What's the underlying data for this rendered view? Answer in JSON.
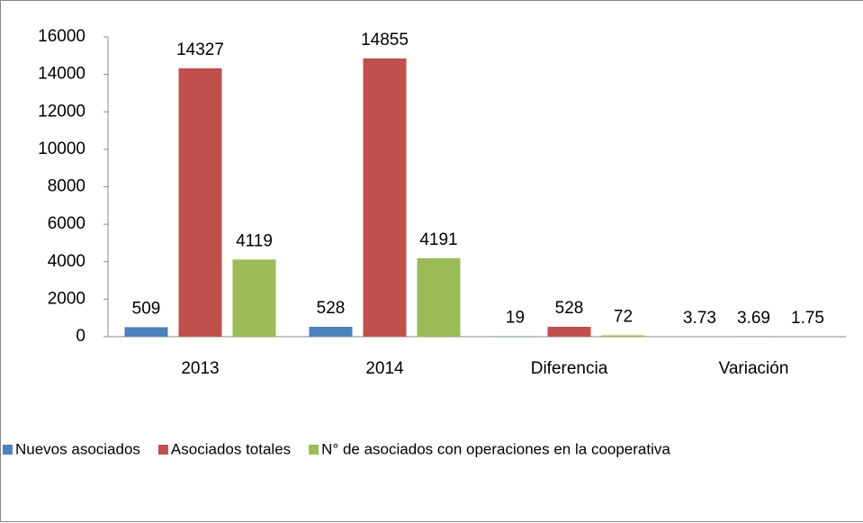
{
  "chart_data": {
    "type": "bar",
    "categories": [
      "2013",
      "2014",
      "Diferencia",
      "Variación"
    ],
    "series": [
      {
        "name": "Nuevos asociados",
        "color": "#4f81bd",
        "values": [
          509,
          528,
          19,
          3.73
        ]
      },
      {
        "name": "Asociados totales",
        "color": "#c0504d",
        "values": [
          14327,
          14855,
          528,
          3.69
        ]
      },
      {
        "name": "N° de asociados con operaciones en la cooperativa",
        "color": "#9bbb59",
        "values": [
          4119,
          4191,
          72,
          1.75
        ]
      }
    ],
    "ylim": [
      0,
      16000
    ],
    "yticks": [
      0,
      2000,
      4000,
      6000,
      8000,
      10000,
      12000,
      14000,
      16000
    ],
    "grid": false,
    "legend": "bottom"
  }
}
